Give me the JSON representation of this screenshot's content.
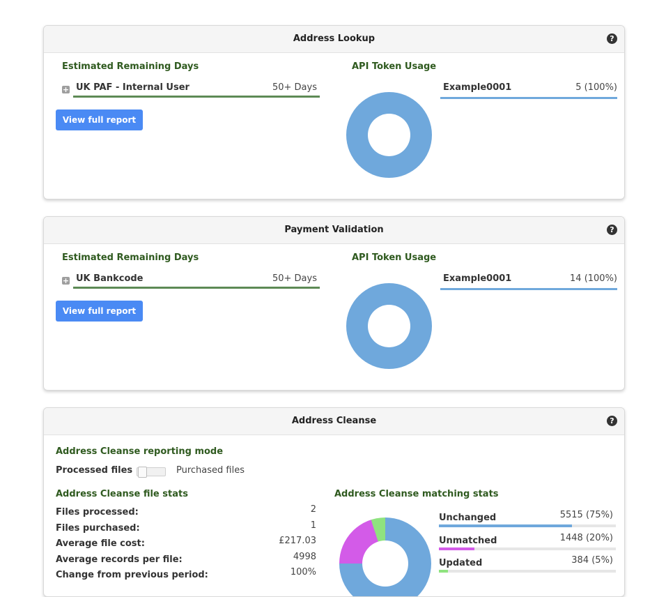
{
  "panels": [
    {
      "title": "Address Lookup",
      "help_icon": "?",
      "remaining_title": "Estimated Remaining Days",
      "item_label": "UK PAF - Internal User",
      "item_value": "50+ Days",
      "button_label": "View full report",
      "token_title": "API Token Usage",
      "token_user": "Example0001",
      "token_value": "5 (100%)"
    },
    {
      "title": "Payment Validation",
      "help_icon": "?",
      "remaining_title": "Estimated Remaining Days",
      "item_label": "UK Bankcode",
      "item_value": "50+ Days",
      "button_label": "View full report",
      "token_title": "API Token Usage",
      "token_user": "Example0001",
      "token_value": "14 (100%)"
    }
  ],
  "cleanse": {
    "title": "Address Cleanse",
    "help_icon": "?",
    "mode_title": "Address Cleanse reporting mode",
    "mode_left": "Processed files",
    "mode_right": "Purchased files",
    "stats_title": "Address Cleanse file stats",
    "stats": [
      {
        "label": "Files processed:",
        "value": "2"
      },
      {
        "label": "Files purchased:",
        "value": "1"
      },
      {
        "label": "Average file cost:",
        "value": "£217.03"
      },
      {
        "label": "Average records per file:",
        "value": "4998"
      },
      {
        "label": "Change from previous period:",
        "value": "100%"
      }
    ],
    "matching_title": "Address Cleanse matching stats",
    "matching": [
      {
        "label": "Unchanged",
        "value": "5515 (75%)",
        "percent": 75,
        "color": "#6fa8dc"
      },
      {
        "label": "Unmatched",
        "value": "1448 (20%)",
        "percent": 20,
        "color": "#d35be8"
      },
      {
        "label": "Updated",
        "value": "384 (5%)",
        "percent": 5,
        "color": "#8fe37f"
      }
    ]
  },
  "colors": {
    "section_title": "#2f5a1f",
    "button": "#4a8af4",
    "token_blue": "#6fa8dc",
    "green_rule": "#5d8a55"
  }
}
